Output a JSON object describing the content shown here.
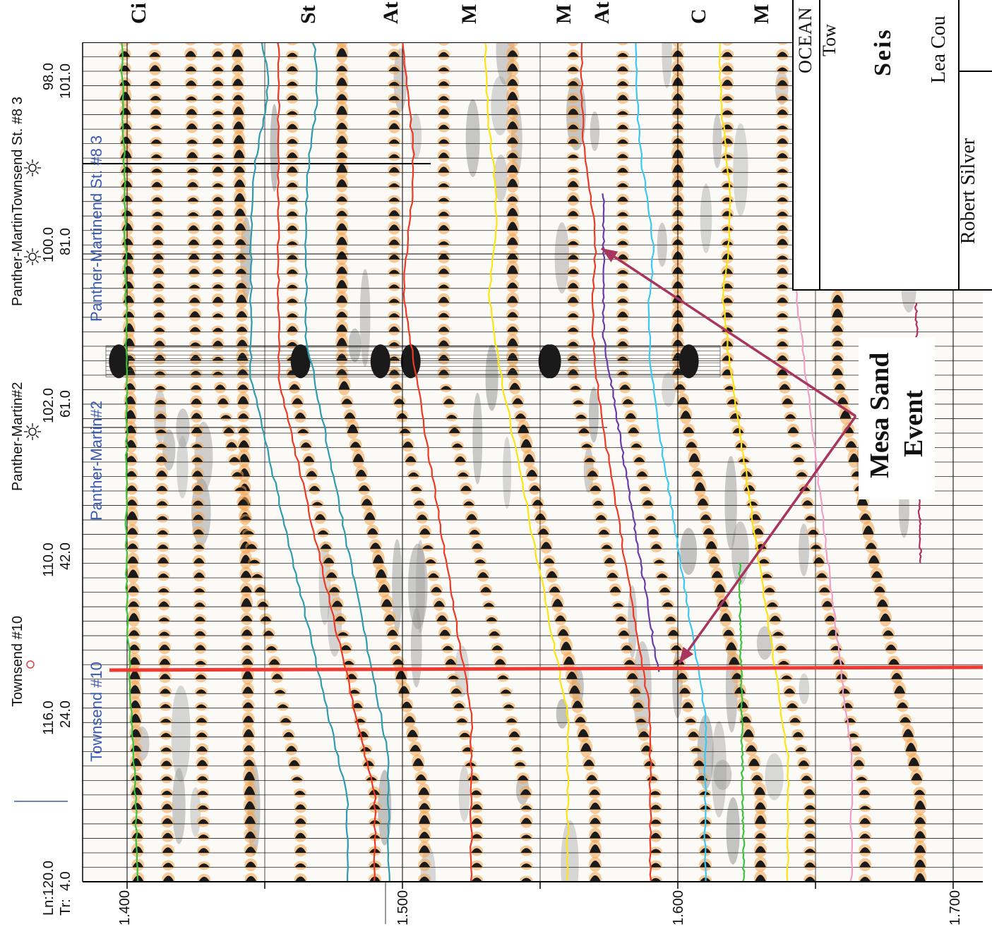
{
  "colors": {
    "trough_fill": "#1a1a1a",
    "peak_fill": "#f2a24a",
    "shadow": "#9a9a9a",
    "green": "#3cc23c",
    "cyan_teal": "#2f9bb0",
    "red": "#ee3a24",
    "yellow": "#ffe414",
    "purple": "#6a3aa8",
    "light_cyan": "#3cc8f0",
    "pink": "#f0a0c8",
    "magenta": "#b03060",
    "well_red": "#ef3a33"
  },
  "axis": {
    "header_line": "Ln:",
    "header_trace": "Tr:",
    "first_ln": "120.0",
    "first_tr": "4.0",
    "time_ticks": [
      "1.400",
      "1.500",
      "1.600",
      "1.700"
    ]
  },
  "wells": [
    {
      "name": "Townsend #10",
      "ln": "116.0",
      "tr": "24.0",
      "symbol": "circle-icon"
    },
    {
      "name": "Panther-Martin#2",
      "ln": "110.0",
      "tr": "42.0",
      "symbol": "sun-icon"
    },
    {
      "name": "Panther-MartinTownsend St. #8 3",
      "ln": "102.0",
      "tr": "61.0",
      "symbol": "sun-icon"
    },
    {
      "name": "",
      "ln": "100.0",
      "tr": "81.0",
      "symbol": ""
    },
    {
      "name": "",
      "ln": "98.0",
      "tr": "101.0",
      "symbol": ""
    }
  ],
  "well_traces": [
    "Townsend #10",
    "Panther-Martin#2",
    "Panther-Martinend St. #8 3"
  ],
  "horizon_labels": [
    "Ci",
    "St",
    "At",
    "M",
    "M",
    "At",
    "C",
    "M"
  ],
  "annotation": {
    "line1": "Mesa Sand",
    "line2": "Event"
  },
  "title_block": {
    "company": "OCEAN",
    "project": "Tow",
    "title": "Seis",
    "county": "Lea Cou",
    "author": "Robert Silver"
  }
}
